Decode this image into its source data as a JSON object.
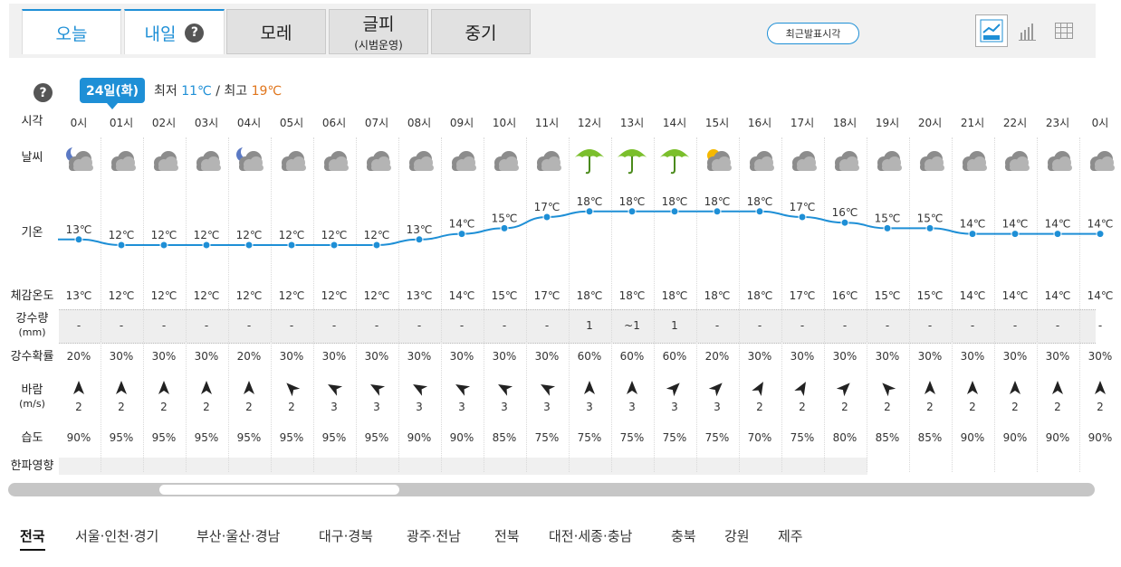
{
  "tabs": [
    {
      "label": "오늘",
      "sub": ""
    },
    {
      "label": "내일",
      "sub": ""
    },
    {
      "label": "모레",
      "sub": ""
    },
    {
      "label": "글피",
      "sub": "(시범운영)"
    },
    {
      "label": "중기",
      "sub": ""
    }
  ],
  "help_symbol": "?",
  "latest_button": "최근발표시각",
  "view_buttons": [
    "line-graph-icon",
    "bar-graph-icon",
    "table-icon"
  ],
  "date": {
    "label": "24일(화)"
  },
  "minmax": {
    "min_label": "최저",
    "min": "11℃",
    "sep": "/",
    "max_label": "최고",
    "max": "19℃"
  },
  "row_labels": {
    "time": "시각",
    "weather": "날씨",
    "temp": "기온",
    "feels": "체감온도",
    "precip": "강수량",
    "precip_unit": "(mm)",
    "prob": "강수확률",
    "wind": "바람",
    "wind_unit": "(m/s)",
    "humidity": "습도",
    "cold": "한파영향"
  },
  "hours": [
    "0시",
    "01시",
    "02시",
    "03시",
    "04시",
    "05시",
    "06시",
    "07시",
    "08시",
    "09시",
    "10시",
    "11시",
    "12시",
    "13시",
    "14시",
    "15시",
    "16시",
    "17시",
    "18시",
    "19시",
    "20시",
    "21시",
    "22시",
    "23시",
    "0시"
  ],
  "weather_icons": [
    "moon-cloud-icon",
    "cloud-icon",
    "cloud-icon",
    "cloud-icon",
    "moon-cloud-icon",
    "cloud-icon",
    "cloud-icon",
    "cloud-icon",
    "cloud-icon",
    "cloud-icon",
    "cloud-icon",
    "cloud-icon",
    "umbrella-icon",
    "umbrella-icon",
    "umbrella-icon",
    "sun-cloud-icon",
    "cloud-icon",
    "cloud-icon",
    "cloud-icon",
    "cloud-icon",
    "cloud-icon",
    "cloud-icon",
    "cloud-icon",
    "cloud-icon",
    "cloud-icon"
  ],
  "temps": [
    13,
    12,
    12,
    12,
    12,
    12,
    12,
    12,
    13,
    14,
    15,
    17,
    18,
    18,
    18,
    18,
    18,
    17,
    16,
    15,
    15,
    14,
    14,
    14,
    14
  ],
  "temp_labels": [
    "13℃",
    "12℃",
    "12℃",
    "12℃",
    "12℃",
    "12℃",
    "12℃",
    "12℃",
    "13℃",
    "14℃",
    "15℃",
    "17℃",
    "18℃",
    "18℃",
    "18℃",
    "18℃",
    "18℃",
    "17℃",
    "16℃",
    "15℃",
    "15℃",
    "14℃",
    "14℃",
    "14℃",
    "14℃"
  ],
  "feels_like": [
    "13℃",
    "12℃",
    "12℃",
    "12℃",
    "12℃",
    "12℃",
    "12℃",
    "12℃",
    "13℃",
    "14℃",
    "15℃",
    "17℃",
    "18℃",
    "18℃",
    "18℃",
    "18℃",
    "18℃",
    "17℃",
    "16℃",
    "15℃",
    "15℃",
    "14℃",
    "14℃",
    "14℃",
    "14℃"
  ],
  "precipitation": [
    "-",
    "-",
    "-",
    "-",
    "-",
    "-",
    "-",
    "-",
    "-",
    "-",
    "-",
    "-",
    "1",
    "~1",
    "1",
    "-",
    "-",
    "-",
    "-",
    "-",
    "-",
    "-",
    "-",
    "-",
    "-"
  ],
  "precip_prob": [
    "20%",
    "30%",
    "30%",
    "30%",
    "20%",
    "30%",
    "30%",
    "30%",
    "30%",
    "30%",
    "30%",
    "30%",
    "60%",
    "60%",
    "60%",
    "20%",
    "30%",
    "30%",
    "30%",
    "30%",
    "30%",
    "30%",
    "30%",
    "30%",
    "30%"
  ],
  "wind_dir_deg": [
    0,
    0,
    0,
    0,
    0,
    -45,
    -60,
    -60,
    -60,
    -60,
    -60,
    -60,
    0,
    0,
    45,
    45,
    30,
    30,
    45,
    -45,
    0,
    0,
    0,
    0,
    0
  ],
  "wind_speed": [
    "2",
    "2",
    "2",
    "2",
    "2",
    "2",
    "3",
    "3",
    "3",
    "3",
    "3",
    "3",
    "3",
    "3",
    "3",
    "3",
    "2",
    "2",
    "2",
    "2",
    "2",
    "2",
    "2",
    "2",
    "2"
  ],
  "humidity": [
    "90%",
    "95%",
    "95%",
    "95%",
    "95%",
    "95%",
    "95%",
    "95%",
    "90%",
    "90%",
    "85%",
    "75%",
    "75%",
    "75%",
    "75%",
    "75%",
    "70%",
    "75%",
    "80%",
    "85%",
    "85%",
    "90%",
    "90%",
    "90%",
    "90%"
  ],
  "regions": [
    "전국",
    "서울·인천·경기",
    "부산·울산·경남",
    "대구·경북",
    "광주·전남",
    "전북",
    "대전·세종·충남",
    "충북",
    "강원",
    "제주"
  ],
  "colors": {
    "accent": "#1e8fd6",
    "max": "#e0751b",
    "umbrella": "#7bbf2c"
  }
}
